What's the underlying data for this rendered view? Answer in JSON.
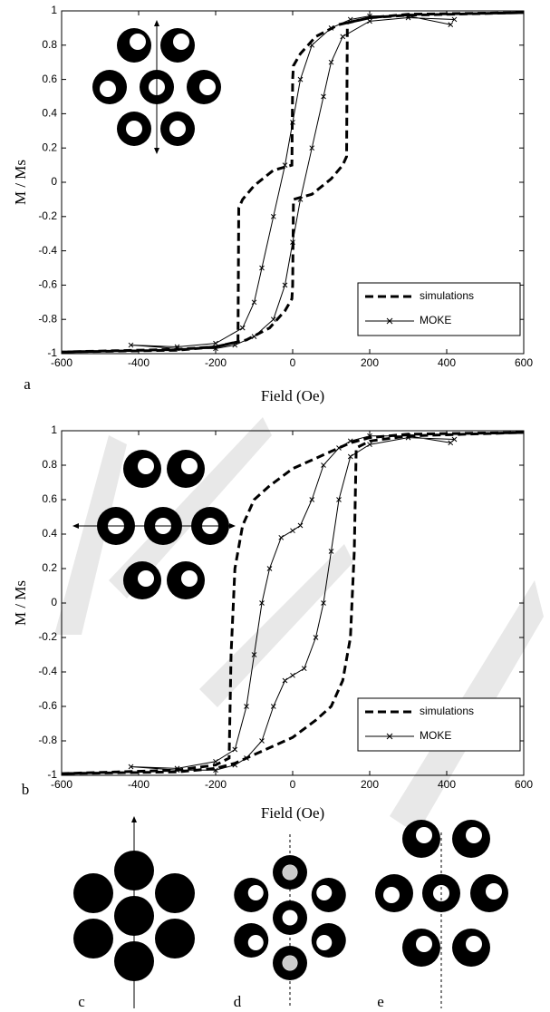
{
  "chart_data": [
    {
      "type": "line",
      "label": "a",
      "xlabel": "Field (Oe)",
      "ylabel": "M / Ms",
      "xlim": [
        -600,
        600
      ],
      "ylim": [
        -1,
        1
      ],
      "xticks": [
        -600,
        -400,
        -200,
        0,
        200,
        400,
        600
      ],
      "yticks": [
        -1,
        -0.8,
        -0.6,
        -0.4,
        -0.2,
        0,
        0.2,
        0.4,
        0.6,
        0.8,
        1
      ],
      "legend": "lower right",
      "series": [
        {
          "name": "simulations",
          "color": "#000000",
          "style": "dashed",
          "x": [
            600,
            300,
            200,
            120,
            60,
            20,
            2,
            0,
            -2,
            -50,
            -100,
            -130,
            -140,
            -142,
            -200,
            -300,
            -600,
            -300,
            -200,
            -120,
            -60,
            -20,
            -2,
            0,
            2,
            50,
            100,
            130,
            140,
            142,
            200,
            300,
            600
          ],
          "values": [
            0.99,
            0.98,
            0.96,
            0.92,
            0.85,
            0.75,
            0.68,
            0.6,
            0.1,
            0.07,
            -0.02,
            -0.1,
            -0.15,
            -0.93,
            -0.96,
            -0.975,
            -0.99,
            -0.98,
            -0.96,
            -0.92,
            -0.85,
            -0.75,
            -0.68,
            -0.6,
            -0.1,
            -0.07,
            0.02,
            0.1,
            0.15,
            0.93,
            0.96,
            0.975,
            0.99
          ]
        },
        {
          "name": "MOKE",
          "color": "#000000",
          "style": "solid-x",
          "x": [
            410,
            300,
            200,
            150,
            100,
            50,
            20,
            0,
            -20,
            -50,
            -80,
            -100,
            -130,
            -200,
            -300,
            -420,
            -300,
            -200,
            -150,
            -100,
            -50,
            -20,
            0,
            20,
            50,
            80,
            100,
            130,
            200,
            300,
            420
          ],
          "values": [
            0.92,
            0.97,
            0.97,
            0.95,
            0.9,
            0.8,
            0.6,
            0.35,
            0.1,
            -0.2,
            -0.5,
            -0.7,
            -0.85,
            -0.94,
            -0.96,
            -0.95,
            -0.97,
            -0.97,
            -0.95,
            -0.9,
            -0.8,
            -0.6,
            -0.35,
            -0.1,
            0.2,
            0.5,
            0.7,
            0.85,
            0.94,
            0.96,
            0.95
          ]
        }
      ]
    },
    {
      "type": "line",
      "label": "b",
      "xlabel": "Field (Oe)",
      "ylabel": "M / Ms",
      "xlim": [
        -600,
        600
      ],
      "ylim": [
        -1,
        1
      ],
      "xticks": [
        -600,
        -400,
        -200,
        0,
        200,
        400,
        600
      ],
      "yticks": [
        -1,
        -0.8,
        -0.6,
        -0.4,
        -0.2,
        0,
        0.2,
        0.4,
        0.6,
        0.8,
        1
      ],
      "legend": "lower right",
      "series": [
        {
          "name": "simulations",
          "color": "#000000",
          "style": "dashed",
          "x": [
            600,
            300,
            200,
            150,
            100,
            0,
            -60,
            -100,
            -130,
            -150,
            -160,
            -165,
            -200,
            -300,
            -600,
            -300,
            -200,
            -150,
            -100,
            0,
            60,
            100,
            130,
            150,
            160,
            165,
            200,
            300,
            600
          ],
          "values": [
            0.99,
            0.98,
            0.96,
            0.93,
            0.88,
            0.78,
            0.68,
            0.6,
            0.45,
            0.2,
            -0.3,
            -0.9,
            -0.94,
            -0.97,
            -0.99,
            -0.98,
            -0.96,
            -0.93,
            -0.88,
            -0.78,
            -0.68,
            -0.6,
            -0.45,
            -0.2,
            0.3,
            0.9,
            0.94,
            0.97,
            0.99
          ]
        },
        {
          "name": "MOKE",
          "color": "#000000",
          "style": "solid-x",
          "x": [
            410,
            300,
            200,
            150,
            120,
            80,
            50,
            20,
            0,
            -30,
            -60,
            -80,
            -100,
            -120,
            -150,
            -200,
            -300,
            -420,
            -300,
            -200,
            -150,
            -120,
            -80,
            -50,
            -20,
            0,
            30,
            60,
            80,
            100,
            120,
            150,
            200,
            300,
            420
          ],
          "values": [
            0.93,
            0.97,
            0.97,
            0.94,
            0.9,
            0.8,
            0.6,
            0.45,
            0.42,
            0.38,
            0.2,
            0,
            -0.3,
            -0.6,
            -0.85,
            -0.92,
            -0.96,
            -0.95,
            -0.97,
            -0.97,
            -0.94,
            -0.9,
            -0.8,
            -0.6,
            -0.45,
            -0.42,
            -0.38,
            -0.2,
            0,
            0.3,
            0.6,
            0.85,
            0.92,
            0.96,
            0.95
          ]
        }
      ]
    }
  ],
  "diagrams": {
    "labels": [
      "c",
      "d",
      "e"
    ]
  }
}
